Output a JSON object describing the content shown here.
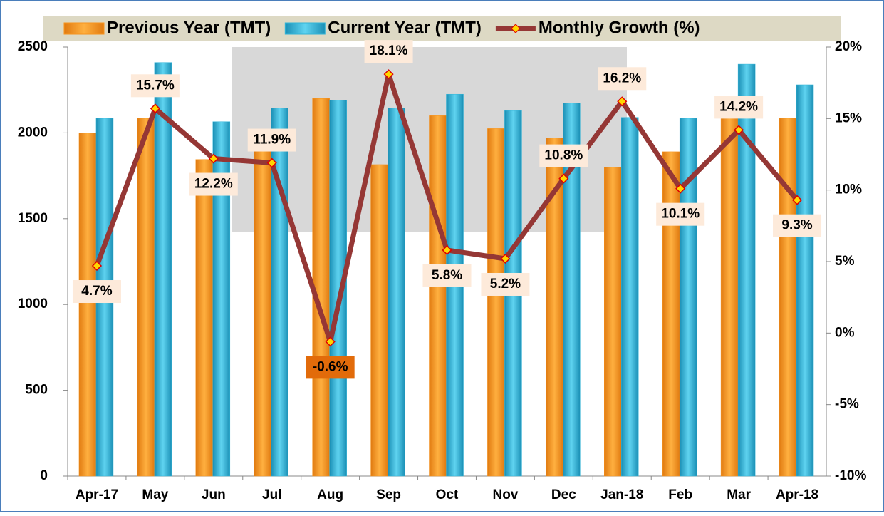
{
  "chart_data": {
    "type": "bar_line",
    "categories": [
      "Apr-17",
      "May",
      "Jun",
      "Jul",
      "Aug",
      "Sep",
      "Oct",
      "Nov",
      "Dec",
      "Jan-18",
      "Feb",
      "Mar",
      "Apr-18"
    ],
    "series": [
      {
        "name": "Previous Year (TMT)",
        "color": "#f7941d",
        "values": [
          2000,
          2085,
          1845,
          1920,
          2200,
          1815,
          2100,
          2025,
          1970,
          1800,
          1890,
          2100,
          2085
        ]
      },
      {
        "name": "Current Year (TMT)",
        "color": "#31b5d8",
        "values": [
          2085,
          2410,
          2065,
          2145,
          2190,
          2145,
          2225,
          2130,
          2175,
          2090,
          2085,
          2400,
          2280
        ]
      },
      {
        "name": "Monthly Growth (%)",
        "color": "#953735",
        "axis": "y2",
        "type": "line",
        "values": [
          4.7,
          15.7,
          12.2,
          11.9,
          -0.6,
          18.1,
          5.8,
          5.2,
          10.8,
          16.2,
          10.1,
          14.2,
          9.3
        ],
        "value_labels": [
          "4.7%",
          "15.7%",
          "12.2%",
          "11.9%",
          "-0.6%",
          "18.1%",
          "5.8%",
          "5.2%",
          "10.8%",
          "16.2%",
          "10.1%",
          "14.2%",
          "9.3%"
        ]
      }
    ],
    "ylim": [
      0,
      2500
    ],
    "yticks": [
      0,
      500,
      1000,
      1500,
      2000,
      2500
    ],
    "y2lim": [
      -10,
      20
    ],
    "y2ticks": [
      {
        "value": -10,
        "label": "-10%"
      },
      {
        "value": -5,
        "label": "-5%"
      },
      {
        "value": 0,
        "label": "0%"
      },
      {
        "value": 5,
        "label": "5%"
      },
      {
        "value": 10,
        "label": "10%"
      },
      {
        "value": 15,
        "label": "15%"
      },
      {
        "value": 20,
        "label": "20%"
      }
    ],
    "grid": false,
    "legend": "top"
  }
}
